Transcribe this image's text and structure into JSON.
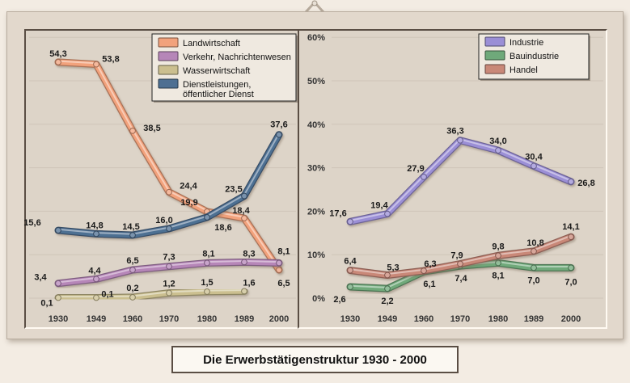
{
  "chart_title": "Die Erwerbstätigenstruktur 1930 - 2000",
  "chart_data": [
    {
      "type": "line",
      "categories": [
        "1930",
        "1949",
        "1960",
        "1970",
        "1980",
        "1989",
        "2000"
      ],
      "xlabel": "",
      "ylabel": "",
      "legend_position": "top-right",
      "grid": true,
      "series": [
        {
          "name": "Landwirtschaft",
          "color": "#f2a27c",
          "values": [
            54.3,
            53.8,
            38.5,
            24.4,
            19.9,
            18.4,
            6.5
          ],
          "labels": [
            "54,3",
            "53,8",
            "38,5",
            "24,4",
            "19,9",
            "18,4",
            "6,5"
          ]
        },
        {
          "name": "Verkehr, Nachrichtenwesen",
          "color": "#b686b8",
          "values": [
            3.4,
            4.4,
            6.5,
            7.3,
            8.1,
            8.3,
            8.1
          ],
          "labels": [
            "3,4",
            "4,4",
            "6,5",
            "7,3",
            "8,1",
            "8,3",
            "8,1"
          ]
        },
        {
          "name": "Wasserwirtschaft",
          "color": "#cbbf8f",
          "values": [
            0.1,
            0.1,
            0.2,
            1.2,
            1.5,
            1.6,
            null
          ],
          "labels": [
            "0,1",
            "0,1",
            "0,2",
            "1,2",
            "1,5",
            "1,6",
            ""
          ]
        },
        {
          "name": "Dienstleistungen, öffentlicher Dienst",
          "color": "#4e6f92",
          "values": [
            15.6,
            14.8,
            14.5,
            16.0,
            18.6,
            23.5,
            37.6
          ],
          "labels": [
            "15,6",
            "14,8",
            "14,5",
            "16,0",
            "18,6",
            "23,5",
            "37,6"
          ]
        }
      ]
    },
    {
      "type": "line",
      "categories": [
        "1930",
        "1949",
        "1960",
        "1970",
        "1980",
        "1989",
        "2000"
      ],
      "xlabel": "",
      "ylabel": "",
      "ylim": [
        0,
        60
      ],
      "yticks": [
        "0%",
        "10%",
        "20%",
        "30%",
        "40%",
        "50%",
        "60%"
      ],
      "legend_position": "top-right",
      "grid": true,
      "series": [
        {
          "name": "Industrie",
          "color": "#9b8fd6",
          "values": [
            17.6,
            19.4,
            27.9,
            36.3,
            34.0,
            30.4,
            26.8
          ],
          "labels": [
            "17,6",
            "19,4",
            "27,9",
            "36,3",
            "34,0",
            "30,4",
            "26,8"
          ]
        },
        {
          "name": "Bauindustrie",
          "color": "#6fa97a",
          "values": [
            2.6,
            2.2,
            6.1,
            7.4,
            8.1,
            7.0,
            7.0
          ],
          "labels": [
            "2,6",
            "2,2",
            "6,1",
            "7,4",
            "8,1",
            "7,0",
            "7,0"
          ]
        },
        {
          "name": "Handel",
          "color": "#c98878",
          "values": [
            6.4,
            5.3,
            6.3,
            7.9,
            9.8,
            10.8,
            14.1
          ],
          "labels": [
            "6,4",
            "5,3",
            "6,3",
            "7,9",
            "9,8",
            "10,8",
            "14,1"
          ]
        }
      ]
    }
  ]
}
